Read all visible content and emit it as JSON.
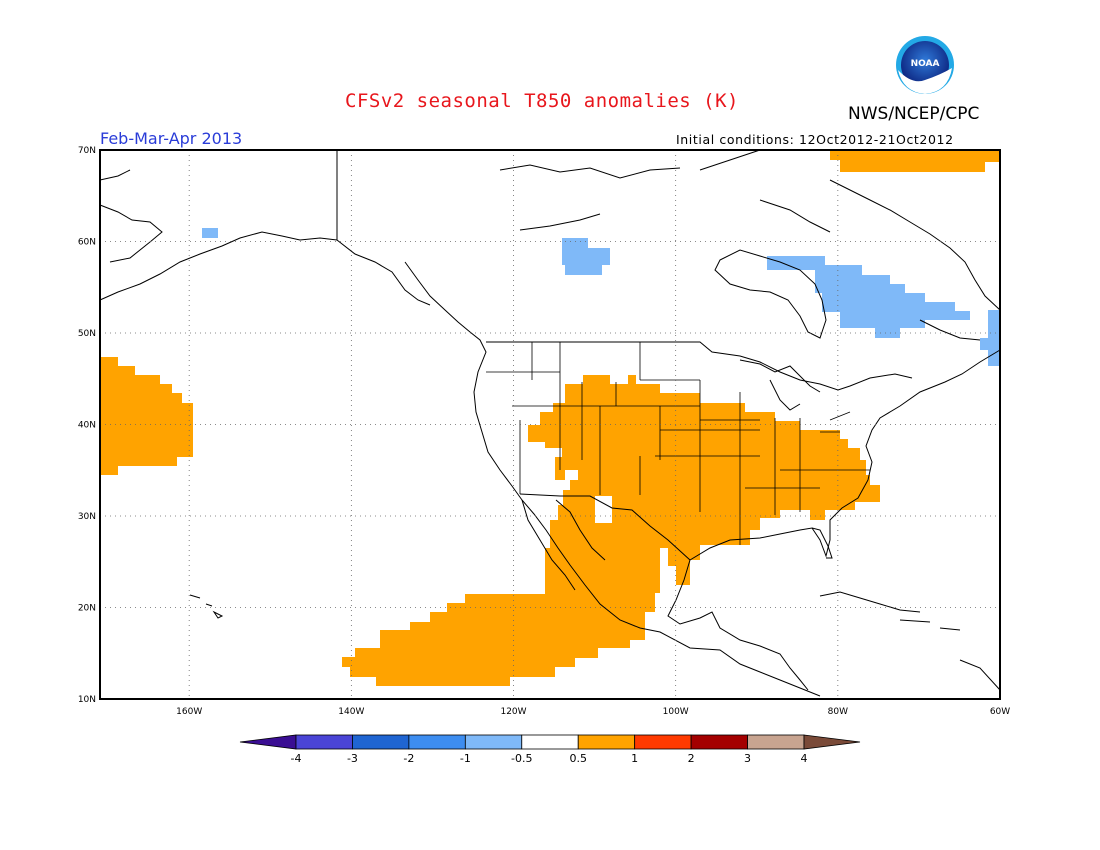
{
  "header": {
    "title": "CFSv2 seasonal T850 anomalies (K)",
    "agency": "NWS/NCEP/CPC",
    "period": "Feb-Mar-Apr 2013",
    "initial_conditions": "Initial conditions: 12Oct2012-21Oct2012",
    "logo_text": "NOAA"
  },
  "map": {
    "lon_range": [
      -171,
      -60
    ],
    "lat_range": [
      10,
      70
    ],
    "x_ticks": [
      {
        "lon": -160,
        "label": "160W"
      },
      {
        "lon": -140,
        "label": "140W"
      },
      {
        "lon": -120,
        "label": "120W"
      },
      {
        "lon": -100,
        "label": "100W"
      },
      {
        "lon": -80,
        "label": "80W"
      },
      {
        "lon": -60,
        "label": "60W"
      }
    ],
    "y_ticks": [
      {
        "lat": 10,
        "label": "10N"
      },
      {
        "lat": 20,
        "label": "20N"
      },
      {
        "lat": 30,
        "label": "30N"
      },
      {
        "lat": 40,
        "label": "40N"
      },
      {
        "lat": 50,
        "label": "50N"
      },
      {
        "lat": 60,
        "label": "60N"
      },
      {
        "lat": 70,
        "label": "70N"
      }
    ],
    "grid": "dotted"
  },
  "colorbar": {
    "ticks": [
      "-4",
      "-3",
      "-2",
      "-1",
      "-0.5",
      "0.5",
      "1",
      "2",
      "3",
      "4"
    ],
    "colors": [
      "#3a0e93",
      "#4a44d6",
      "#1f65d2",
      "#3d8df0",
      "#7fb9f8",
      "#ffffff",
      "#ffa300",
      "#ff3a00",
      "#a40000",
      "#c8a490",
      "#7a4a38"
    ]
  }
}
